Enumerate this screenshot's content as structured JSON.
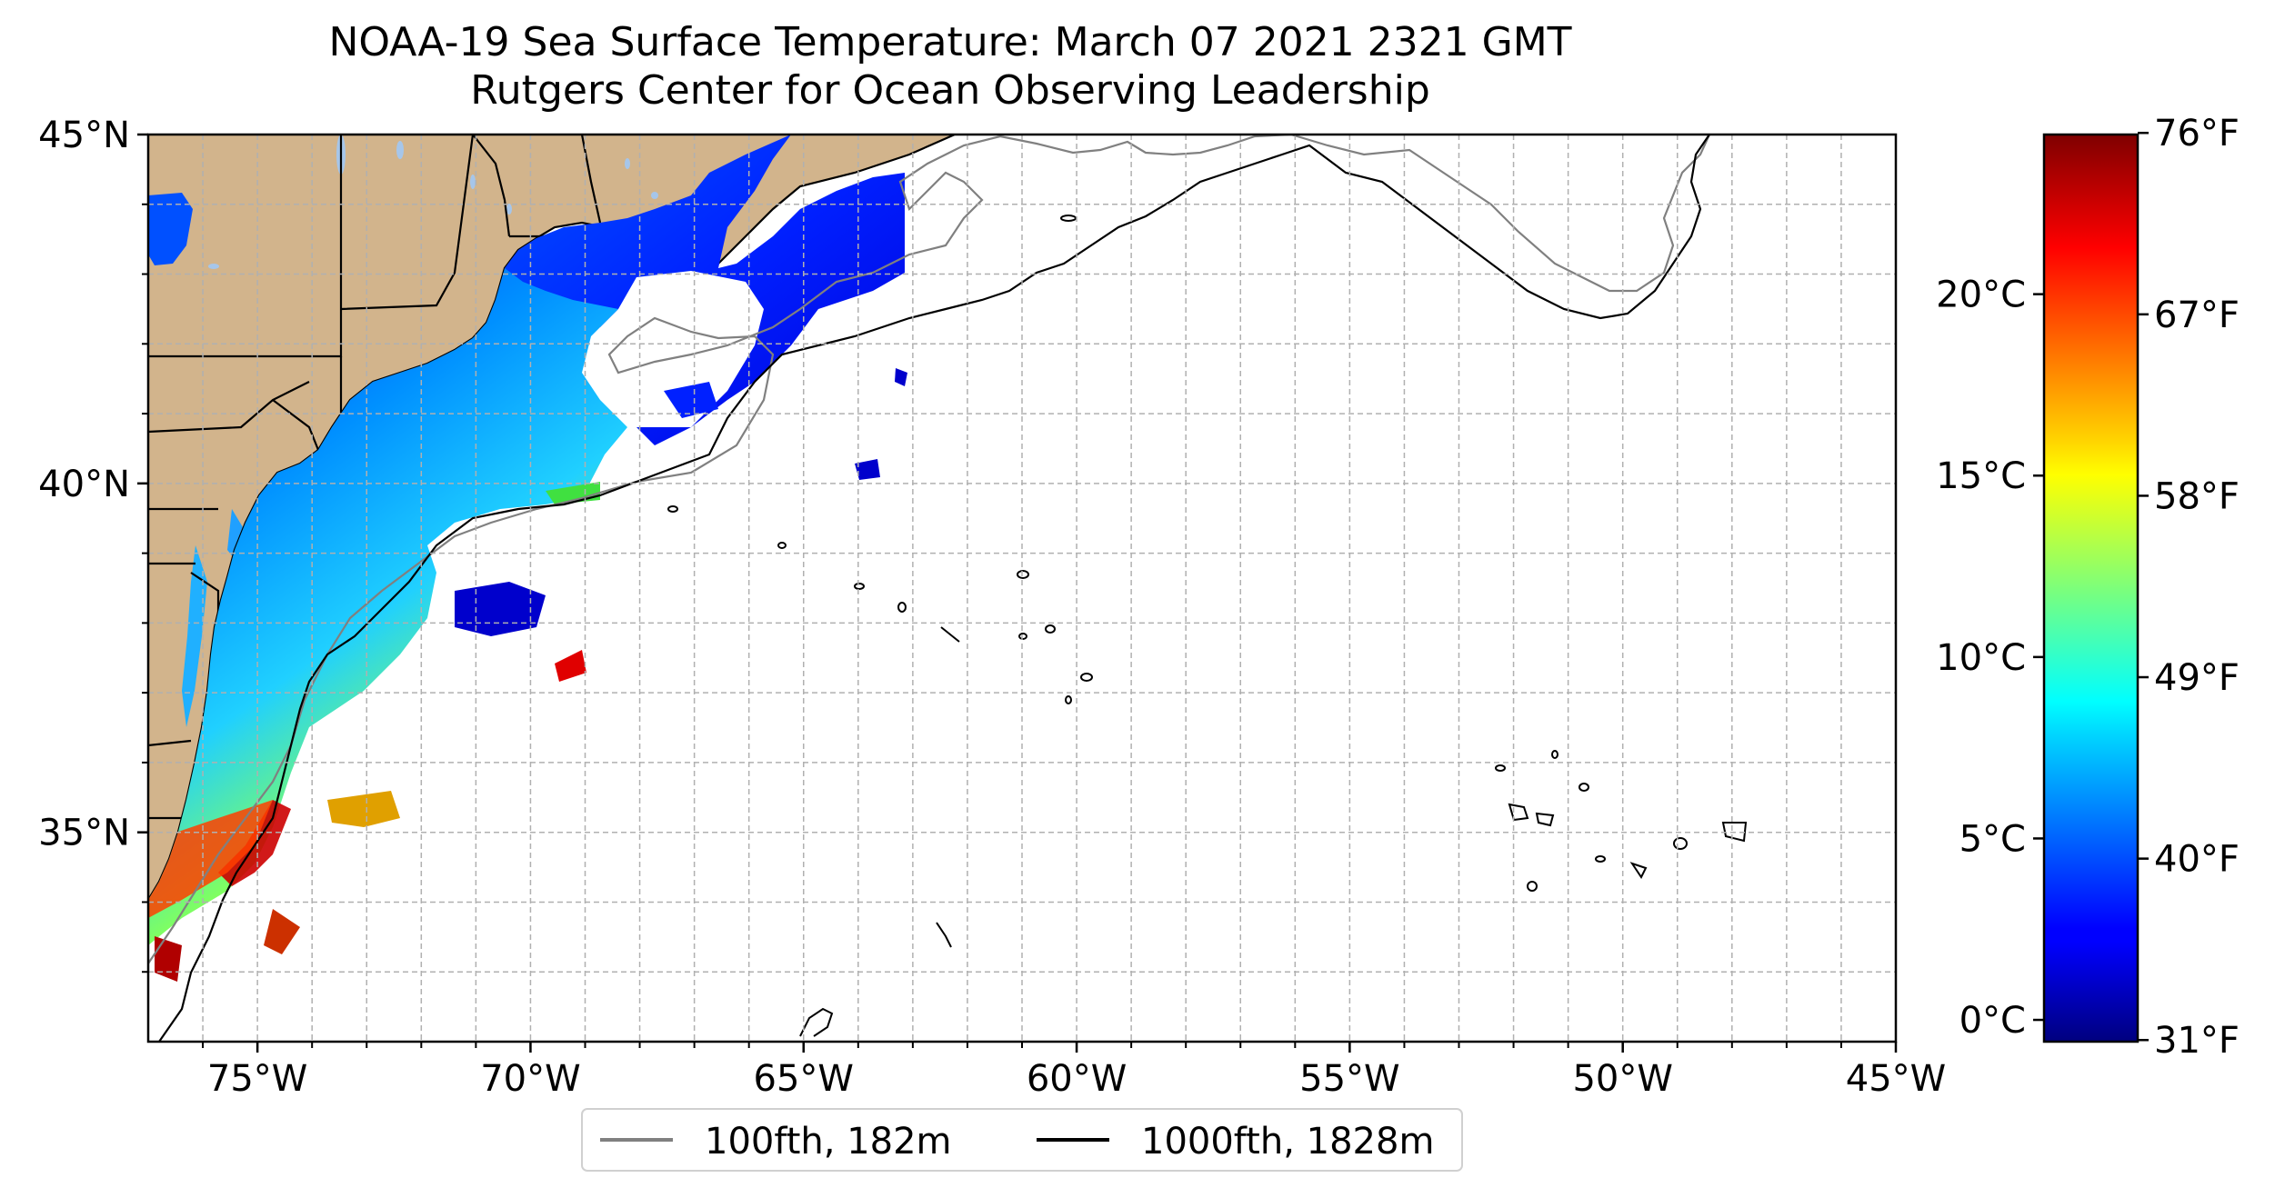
{
  "title": {
    "line1": "NOAA-19 Sea Surface Temperature: March 07 2021 2321 GMT",
    "line2": "Rutgers Center for Ocean Observing Leadership"
  },
  "map": {
    "lon_range": [
      -77,
      -45
    ],
    "lat_range": [
      32,
      45
    ],
    "lon_ticks": [
      -75,
      -70,
      -65,
      -60,
      -55,
      -50,
      -45
    ],
    "lon_tick_labels": [
      "75°W",
      "70°W",
      "65°W",
      "60°W",
      "55°W",
      "50°W",
      "45°W"
    ],
    "lat_ticks": [
      35,
      40,
      45
    ],
    "lat_tick_labels": [
      "35°N",
      "40°N",
      "45°N"
    ],
    "minor_gridlines": true,
    "land_color": "#d2b48c",
    "lake_color": "#a6c6ea",
    "isobath_100_color": "#808080",
    "isobath_1000_color": "#000000"
  },
  "legend": {
    "placement": "bottom-center",
    "items": [
      {
        "label": "100fth, 182m",
        "color": "#808080"
      },
      {
        "label": "1000fth, 1828m",
        "color": "#000000"
      }
    ]
  },
  "colorbar": {
    "colormap": "jet",
    "range_celsius": [
      -0.6,
      24.4
    ],
    "celsius_ticks": [
      0,
      5,
      10,
      15,
      20
    ],
    "celsius_labels": [
      "0°C",
      "5°C",
      "10°C",
      "15°C",
      "20°C"
    ],
    "fahrenheit_ticks": [
      31,
      40,
      49,
      58,
      67,
      76
    ],
    "fahrenheit_labels": [
      "31°F",
      "40°F",
      "49°F",
      "58°F",
      "67°F",
      "76°F"
    ]
  }
}
